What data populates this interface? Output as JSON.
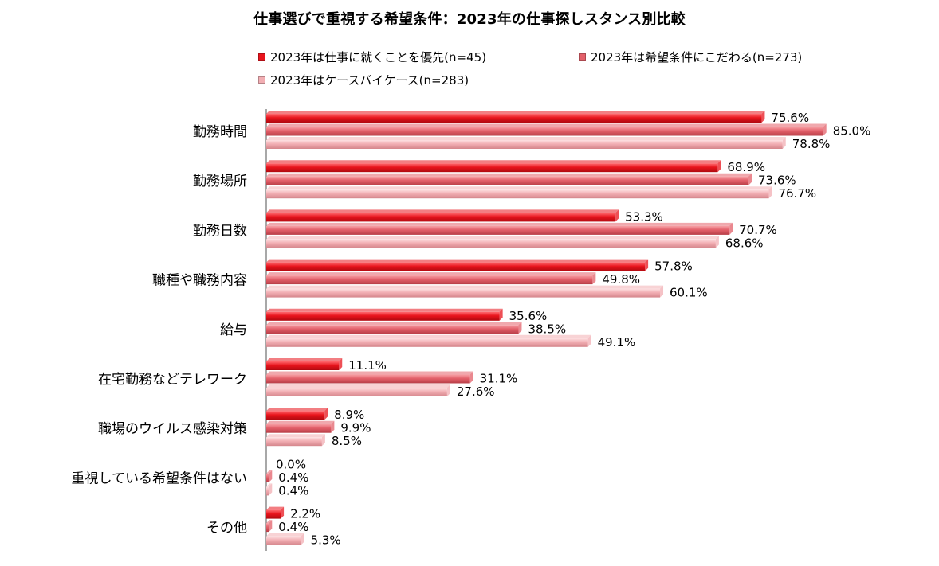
{
  "chart_data": {
    "type": "bar",
    "orientation": "horizontal",
    "title": "仕事選びで重視する希望条件：2023年の仕事探しスタンス別比較",
    "categories": [
      "勤務時間",
      "勤務場所",
      "勤務日数",
      "職種や職務内容",
      "給与",
      "在宅勤務などテレワーク",
      "職場のウイルス感染対策",
      "重視している希望条件はない",
      "その他"
    ],
    "series": [
      {
        "name": "2023年は仕事に就くことを優先(n=45)",
        "color": "#e8141c",
        "values": [
          75.6,
          68.9,
          53.3,
          57.8,
          35.6,
          11.1,
          8.9,
          0.0,
          2.2
        ]
      },
      {
        "name": "2023年は希望条件にこだわる(n=273)",
        "color": "#e3606a",
        "values": [
          85.0,
          73.6,
          70.7,
          49.8,
          38.5,
          31.1,
          9.9,
          0.4,
          0.4
        ]
      },
      {
        "name": "2023年はケースバイケース(n=283)",
        "color": "#f2aeb3",
        "values": [
          78.8,
          76.7,
          68.6,
          60.1,
          49.1,
          27.6,
          8.5,
          0.4,
          5.3
        ]
      }
    ],
    "value_labels": [
      [
        "75.6%",
        "68.9%",
        "53.3%",
        "57.8%",
        "35.6%",
        "11.1%",
        "8.9%",
        "0.0%",
        "2.2%"
      ],
      [
        "85.0%",
        "73.6%",
        "70.7%",
        "49.8%",
        "38.5%",
        "31.1%",
        "9.9%",
        "0.4%",
        "0.4%"
      ],
      [
        "78.8%",
        "76.7%",
        "68.6%",
        "60.1%",
        "49.1%",
        "27.6%",
        "8.5%",
        "0.4%",
        "5.3%"
      ]
    ],
    "xlim": [
      0,
      100
    ],
    "xlabel": "",
    "ylabel": "",
    "grid": false,
    "legend_position": "top"
  }
}
